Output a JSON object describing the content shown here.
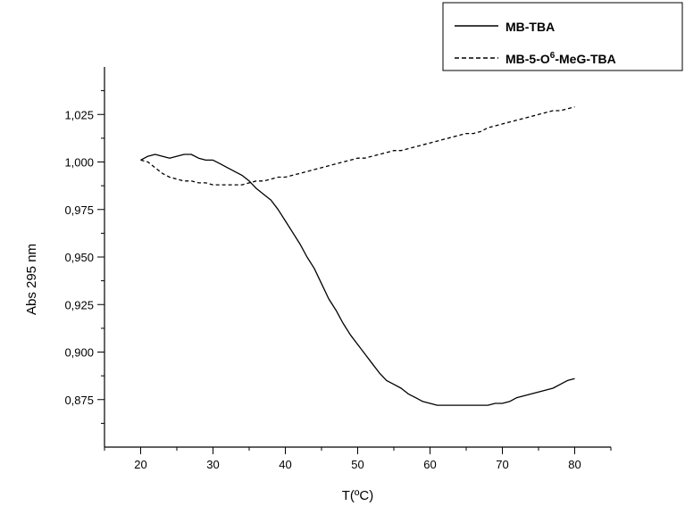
{
  "chart_data": {
    "type": "line",
    "xlabel": "T(ºC)",
    "ylabel": "Abs 295 nm",
    "xlim": [
      15,
      85
    ],
    "ylim": [
      0.85,
      1.05
    ],
    "grid": false,
    "legend_placement": "top-right",
    "x_ticks": [
      "20",
      "30",
      "40",
      "50",
      "60",
      "70",
      "80"
    ],
    "y_ticks": [
      "0,875",
      "0,900",
      "0,925",
      "0,950",
      "0,975",
      "1,000",
      "1,025"
    ],
    "series": [
      {
        "name": "MB-TBA",
        "style": "solid",
        "points": [
          [
            20,
            1.001
          ],
          [
            21,
            1.003
          ],
          [
            22,
            1.004
          ],
          [
            23,
            1.003
          ],
          [
            24,
            1.002
          ],
          [
            25,
            1.003
          ],
          [
            26,
            1.004
          ],
          [
            27,
            1.004
          ],
          [
            28,
            1.002
          ],
          [
            29,
            1.001
          ],
          [
            30,
            1.001
          ],
          [
            31,
            0.999
          ],
          [
            32,
            0.997
          ],
          [
            33,
            0.995
          ],
          [
            34,
            0.993
          ],
          [
            35,
            0.99
          ],
          [
            36,
            0.986
          ],
          [
            37,
            0.983
          ],
          [
            38,
            0.98
          ],
          [
            39,
            0.975
          ],
          [
            40,
            0.969
          ],
          [
            41,
            0.963
          ],
          [
            42,
            0.957
          ],
          [
            43,
            0.95
          ],
          [
            44,
            0.944
          ],
          [
            45,
            0.936
          ],
          [
            46,
            0.928
          ],
          [
            47,
            0.922
          ],
          [
            48,
            0.915
          ],
          [
            49,
            0.909
          ],
          [
            50,
            0.904
          ],
          [
            51,
            0.899
          ],
          [
            52,
            0.894
          ],
          [
            53,
            0.889
          ],
          [
            54,
            0.885
          ],
          [
            55,
            0.883
          ],
          [
            56,
            0.881
          ],
          [
            57,
            0.878
          ],
          [
            58,
            0.876
          ],
          [
            59,
            0.874
          ],
          [
            60,
            0.873
          ],
          [
            61,
            0.872
          ],
          [
            62,
            0.872
          ],
          [
            63,
            0.872
          ],
          [
            64,
            0.872
          ],
          [
            65,
            0.872
          ],
          [
            66,
            0.872
          ],
          [
            67,
            0.872
          ],
          [
            68,
            0.872
          ],
          [
            69,
            0.873
          ],
          [
            70,
            0.873
          ],
          [
            71,
            0.874
          ],
          [
            72,
            0.876
          ],
          [
            73,
            0.877
          ],
          [
            74,
            0.878
          ],
          [
            75,
            0.879
          ],
          [
            76,
            0.88
          ],
          [
            77,
            0.881
          ],
          [
            78,
            0.883
          ],
          [
            79,
            0.885
          ],
          [
            80,
            0.886
          ]
        ]
      },
      {
        "name": "MB-5-O6-MeG-TBA",
        "style": "dashed",
        "points": [
          [
            20,
            1.001
          ],
          [
            21,
            1.0
          ],
          [
            22,
            0.997
          ],
          [
            23,
            0.994
          ],
          [
            24,
            0.992
          ],
          [
            25,
            0.991
          ],
          [
            26,
            0.99
          ],
          [
            27,
            0.99
          ],
          [
            28,
            0.989
          ],
          [
            29,
            0.989
          ],
          [
            30,
            0.988
          ],
          [
            31,
            0.988
          ],
          [
            32,
            0.988
          ],
          [
            33,
            0.988
          ],
          [
            34,
            0.988
          ],
          [
            35,
            0.989
          ],
          [
            36,
            0.99
          ],
          [
            37,
            0.99
          ],
          [
            38,
            0.991
          ],
          [
            39,
            0.992
          ],
          [
            40,
            0.992
          ],
          [
            41,
            0.993
          ],
          [
            42,
            0.994
          ],
          [
            43,
            0.995
          ],
          [
            44,
            0.996
          ],
          [
            45,
            0.997
          ],
          [
            46,
            0.998
          ],
          [
            47,
            0.999
          ],
          [
            48,
            1.0
          ],
          [
            49,
            1.001
          ],
          [
            50,
            1.002
          ],
          [
            51,
            1.002
          ],
          [
            52,
            1.003
          ],
          [
            53,
            1.004
          ],
          [
            54,
            1.005
          ],
          [
            55,
            1.006
          ],
          [
            56,
            1.006
          ],
          [
            57,
            1.007
          ],
          [
            58,
            1.008
          ],
          [
            59,
            1.009
          ],
          [
            60,
            1.01
          ],
          [
            61,
            1.011
          ],
          [
            62,
            1.012
          ],
          [
            63,
            1.013
          ],
          [
            64,
            1.014
          ],
          [
            65,
            1.015
          ],
          [
            66,
            1.015
          ],
          [
            67,
            1.016
          ],
          [
            68,
            1.018
          ],
          [
            69,
            1.019
          ],
          [
            70,
            1.02
          ],
          [
            71,
            1.021
          ],
          [
            72,
            1.022
          ],
          [
            73,
            1.023
          ],
          [
            74,
            1.024
          ],
          [
            75,
            1.025
          ],
          [
            76,
            1.026
          ],
          [
            77,
            1.027
          ],
          [
            78,
            1.027
          ],
          [
            79,
            1.028
          ],
          [
            80,
            1.029
          ]
        ]
      }
    ]
  },
  "legend": {
    "items": [
      {
        "label": "MB-TBA"
      },
      {
        "label_pre": "MB-5-O",
        "label_sup": "6",
        "label_post": "-MeG-TBA"
      }
    ]
  }
}
